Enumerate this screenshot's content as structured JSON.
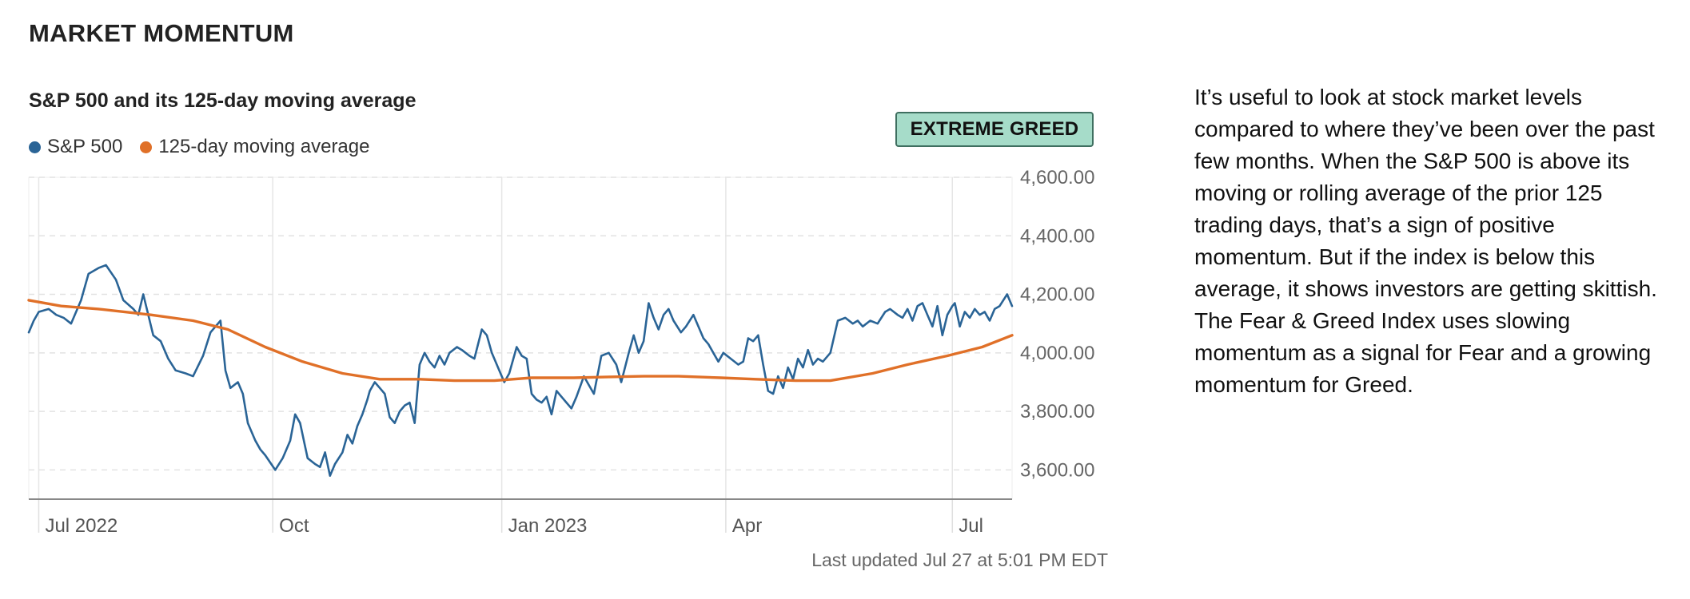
{
  "section_title": "MARKET MOMENTUM",
  "status_badge": "EXTREME GREED",
  "last_updated": "Last updated Jul 27 at 5:01 PM EDT",
  "description": "It’s useful to look at stock market levels compared to where they’ve been over the past few months. When the S&P 500 is above its moving or rolling average of the prior 125 trading days, that’s a sign of positive momentum. But if the index is below this average, it shows investors are getting skittish. The Fear & Greed Index uses slowing momentum as a signal for Fear and a growing momentum for Greed.",
  "colors": {
    "sp500": "#2a6496",
    "moving_average": "#e07028",
    "badge_bg": "#a6dcc9",
    "grid": "#e2e2e2",
    "axis": "#888888"
  },
  "chart_data": {
    "type": "line",
    "title": "S&P 500 and its 125-day moving average",
    "legend_position": "top-left",
    "grid": true,
    "x_range": [
      "2022-06-27",
      "2023-07-27"
    ],
    "ylim": [
      3500,
      4600
    ],
    "y_ticks": [
      {
        "value": 4600,
        "label": "4,600.00"
      },
      {
        "value": 4400,
        "label": "4,400.00"
      },
      {
        "value": 4200,
        "label": "4,200.00"
      },
      {
        "value": 4000,
        "label": "4,000.00"
      },
      {
        "value": 3800,
        "label": "3,800.00"
      },
      {
        "value": 3600,
        "label": "3,600.00"
      }
    ],
    "x_ticks": [
      {
        "date": "2022-07-01",
        "label": "Jul 2022"
      },
      {
        "date": "2022-10-03",
        "label": "Oct"
      },
      {
        "date": "2023-01-03",
        "label": "Jan 2023"
      },
      {
        "date": "2023-04-03",
        "label": "Apr"
      },
      {
        "date": "2023-07-03",
        "label": "Jul"
      }
    ],
    "series": [
      {
        "name": "S&P 500",
        "points": [
          [
            "2022-06-27",
            4070
          ],
          [
            "2022-06-29",
            4110
          ],
          [
            "2022-07-01",
            4140
          ],
          [
            "2022-07-05",
            4150
          ],
          [
            "2022-07-08",
            4130
          ],
          [
            "2022-07-11",
            4120
          ],
          [
            "2022-07-14",
            4100
          ],
          [
            "2022-07-18",
            4180
          ],
          [
            "2022-07-21",
            4270
          ],
          [
            "2022-07-25",
            4290
          ],
          [
            "2022-07-28",
            4300
          ],
          [
            "2022-08-01",
            4250
          ],
          [
            "2022-08-04",
            4180
          ],
          [
            "2022-08-08",
            4150
          ],
          [
            "2022-08-10",
            4130
          ],
          [
            "2022-08-12",
            4200
          ],
          [
            "2022-08-16",
            4060
          ],
          [
            "2022-08-19",
            4040
          ],
          [
            "2022-08-22",
            3980
          ],
          [
            "2022-08-25",
            3940
          ],
          [
            "2022-08-29",
            3930
          ],
          [
            "2022-09-01",
            3920
          ],
          [
            "2022-09-05",
            3990
          ],
          [
            "2022-09-08",
            4070
          ],
          [
            "2022-09-12",
            4110
          ],
          [
            "2022-09-14",
            3940
          ],
          [
            "2022-09-16",
            3880
          ],
          [
            "2022-09-19",
            3900
          ],
          [
            "2022-09-21",
            3860
          ],
          [
            "2022-09-23",
            3760
          ],
          [
            "2022-09-26",
            3700
          ],
          [
            "2022-09-28",
            3670
          ],
          [
            "2022-09-30",
            3650
          ],
          [
            "2022-10-04",
            3600
          ],
          [
            "2022-10-07",
            3640
          ],
          [
            "2022-10-10",
            3700
          ],
          [
            "2022-10-12",
            3790
          ],
          [
            "2022-10-14",
            3760
          ],
          [
            "2022-10-17",
            3640
          ],
          [
            "2022-10-20",
            3620
          ],
          [
            "2022-10-22",
            3610
          ],
          [
            "2022-10-24",
            3660
          ],
          [
            "2022-10-26",
            3580
          ],
          [
            "2022-10-28",
            3620
          ],
          [
            "2022-10-31",
            3660
          ],
          [
            "2022-11-02",
            3720
          ],
          [
            "2022-11-04",
            3690
          ],
          [
            "2022-11-06",
            3750
          ],
          [
            "2022-11-08",
            3790
          ],
          [
            "2022-11-10",
            3840
          ],
          [
            "2022-11-11",
            3870
          ],
          [
            "2022-11-13",
            3900
          ],
          [
            "2022-11-15",
            3880
          ],
          [
            "2022-11-17",
            3860
          ],
          [
            "2022-11-19",
            3780
          ],
          [
            "2022-11-21",
            3760
          ],
          [
            "2022-11-23",
            3800
          ],
          [
            "2022-11-25",
            3820
          ],
          [
            "2022-11-27",
            3830
          ],
          [
            "2022-11-29",
            3760
          ],
          [
            "2022-12-01",
            3960
          ],
          [
            "2022-12-03",
            4000
          ],
          [
            "2022-12-05",
            3970
          ],
          [
            "2022-12-07",
            3950
          ],
          [
            "2022-12-09",
            3990
          ],
          [
            "2022-12-11",
            3960
          ],
          [
            "2022-12-13",
            4000
          ],
          [
            "2022-12-16",
            4020
          ],
          [
            "2022-12-18",
            4010
          ],
          [
            "2022-12-21",
            3990
          ],
          [
            "2022-12-23",
            3980
          ],
          [
            "2022-12-26",
            4080
          ],
          [
            "2022-12-28",
            4060
          ],
          [
            "2022-12-30",
            4000
          ],
          [
            "2023-01-02",
            3940
          ],
          [
            "2023-01-04",
            3900
          ],
          [
            "2023-01-06",
            3930
          ],
          [
            "2023-01-09",
            4020
          ],
          [
            "2023-01-11",
            3990
          ],
          [
            "2023-01-13",
            3980
          ],
          [
            "2023-01-15",
            3860
          ],
          [
            "2023-01-17",
            3840
          ],
          [
            "2023-01-19",
            3830
          ],
          [
            "2023-01-21",
            3850
          ],
          [
            "2023-01-23",
            3790
          ],
          [
            "2023-01-25",
            3870
          ],
          [
            "2023-01-27",
            3850
          ],
          [
            "2023-01-29",
            3830
          ],
          [
            "2023-01-31",
            3810
          ],
          [
            "2023-02-02",
            3850
          ],
          [
            "2023-02-05",
            3920
          ],
          [
            "2023-02-07",
            3890
          ],
          [
            "2023-02-09",
            3860
          ],
          [
            "2023-02-12",
            3990
          ],
          [
            "2023-02-15",
            4000
          ],
          [
            "2023-02-18",
            3960
          ],
          [
            "2023-02-20",
            3900
          ],
          [
            "2023-02-23",
            4000
          ],
          [
            "2023-02-25",
            4060
          ],
          [
            "2023-02-27",
            4000
          ],
          [
            "2023-03-01",
            4040
          ],
          [
            "2023-03-03",
            4170
          ],
          [
            "2023-03-05",
            4120
          ],
          [
            "2023-03-07",
            4080
          ],
          [
            "2023-03-09",
            4130
          ],
          [
            "2023-03-11",
            4150
          ],
          [
            "2023-03-13",
            4110
          ],
          [
            "2023-03-16",
            4070
          ],
          [
            "2023-03-18",
            4090
          ],
          [
            "2023-03-21",
            4130
          ],
          [
            "2023-03-23",
            4090
          ],
          [
            "2023-03-25",
            4050
          ],
          [
            "2023-03-27",
            4030
          ],
          [
            "2023-03-29",
            4000
          ],
          [
            "2023-03-31",
            3970
          ],
          [
            "2023-04-02",
            4000
          ],
          [
            "2023-04-05",
            3980
          ],
          [
            "2023-04-08",
            3960
          ],
          [
            "2023-04-10",
            3970
          ],
          [
            "2023-04-12",
            4050
          ],
          [
            "2023-04-14",
            4040
          ],
          [
            "2023-04-16",
            4060
          ],
          [
            "2023-04-18",
            3960
          ],
          [
            "2023-04-20",
            3870
          ],
          [
            "2023-04-22",
            3860
          ],
          [
            "2023-04-24",
            3920
          ],
          [
            "2023-04-26",
            3880
          ],
          [
            "2023-04-28",
            3950
          ],
          [
            "2023-04-30",
            3910
          ],
          [
            "2023-05-02",
            3980
          ],
          [
            "2023-05-04",
            3950
          ],
          [
            "2023-05-06",
            4010
          ],
          [
            "2023-05-08",
            3960
          ],
          [
            "2023-05-10",
            3980
          ],
          [
            "2023-05-12",
            3970
          ],
          [
            "2023-05-15",
            4000
          ],
          [
            "2023-05-18",
            4110
          ],
          [
            "2023-05-21",
            4120
          ],
          [
            "2023-05-24",
            4100
          ],
          [
            "2023-05-26",
            4110
          ],
          [
            "2023-05-28",
            4090
          ],
          [
            "2023-05-31",
            4110
          ],
          [
            "2023-06-03",
            4100
          ],
          [
            "2023-06-06",
            4140
          ],
          [
            "2023-06-08",
            4150
          ],
          [
            "2023-06-11",
            4130
          ],
          [
            "2023-06-13",
            4120
          ],
          [
            "2023-06-15",
            4150
          ],
          [
            "2023-06-17",
            4110
          ],
          [
            "2023-06-19",
            4160
          ],
          [
            "2023-06-21",
            4170
          ],
          [
            "2023-06-23",
            4130
          ],
          [
            "2023-06-25",
            4090
          ],
          [
            "2023-06-27",
            4160
          ],
          [
            "2023-06-29",
            4060
          ],
          [
            "2023-07-01",
            4130
          ],
          [
            "2023-07-03",
            4160
          ],
          [
            "2023-07-04",
            4170
          ],
          [
            "2023-07-06",
            4090
          ],
          [
            "2023-07-08",
            4140
          ],
          [
            "2023-07-10",
            4120
          ],
          [
            "2023-07-12",
            4150
          ],
          [
            "2023-07-14",
            4130
          ],
          [
            "2023-07-16",
            4140
          ],
          [
            "2023-07-18",
            4110
          ],
          [
            "2023-07-20",
            4150
          ],
          [
            "2023-07-22",
            4160
          ],
          [
            "2023-07-25",
            4200
          ],
          [
            "2023-07-26",
            4180
          ],
          [
            "2023-07-27",
            4160
          ]
        ]
      },
      {
        "name": "125-day moving average",
        "points": [
          [
            "2022-06-27",
            4180
          ],
          [
            "2022-07-10",
            4160
          ],
          [
            "2022-07-25",
            4150
          ],
          [
            "2022-08-15",
            4130
          ],
          [
            "2022-09-01",
            4110
          ],
          [
            "2022-09-15",
            4080
          ],
          [
            "2022-09-30",
            4020
          ],
          [
            "2022-10-15",
            3970
          ],
          [
            "2022-10-31",
            3930
          ],
          [
            "2022-11-15",
            3910
          ],
          [
            "2022-12-01",
            3910
          ],
          [
            "2022-12-15",
            3905
          ],
          [
            "2022-12-31",
            3905
          ],
          [
            "2023-01-15",
            3915
          ],
          [
            "2023-02-01",
            3915
          ],
          [
            "2023-02-15",
            3918
          ],
          [
            "2023-03-01",
            3920
          ],
          [
            "2023-03-15",
            3920
          ],
          [
            "2023-04-01",
            3915
          ],
          [
            "2023-04-15",
            3910
          ],
          [
            "2023-05-01",
            3905
          ],
          [
            "2023-05-15",
            3905
          ],
          [
            "2023-06-01",
            3930
          ],
          [
            "2023-06-15",
            3960
          ],
          [
            "2023-07-01",
            3990
          ],
          [
            "2023-07-15",
            4020
          ],
          [
            "2023-07-27",
            4060
          ]
        ]
      }
    ]
  }
}
